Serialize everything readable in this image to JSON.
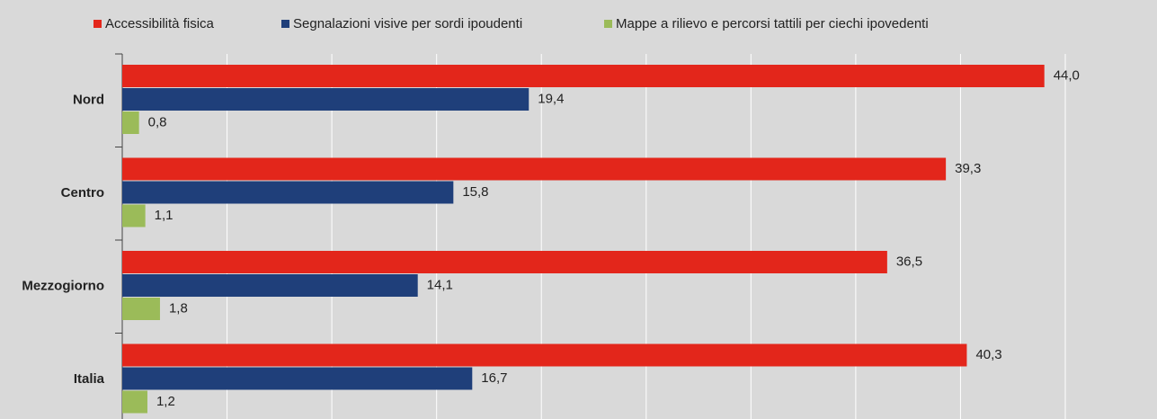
{
  "chart_data": {
    "type": "bar",
    "orientation": "horizontal",
    "categories": [
      "Nord",
      "Centro",
      "Mezzogiorno",
      "Italia"
    ],
    "series": [
      {
        "name": "Accessibilità fisica",
        "color": "#e3261b",
        "values": [
          44.0,
          39.3,
          36.5,
          40.3
        ],
        "value_labels": [
          "44,0",
          "39,3",
          "36,5",
          "40,3"
        ]
      },
      {
        "name": "Segnalazioni visive per sordi ipoudenti",
        "color": "#1f3f7a",
        "values": [
          19.4,
          15.8,
          14.1,
          16.7
        ],
        "value_labels": [
          "19,4",
          "15,8",
          "14,1",
          "16,7"
        ]
      },
      {
        "name": "Mappe a rilievo e percorsi tattili per ciechi ipovedenti",
        "color": "#9bbb59",
        "values": [
          0.8,
          1.1,
          1.8,
          1.2
        ],
        "value_labels": [
          "0,8",
          "1,1",
          "1,8",
          "1,2"
        ]
      }
    ],
    "xlim": [
      0,
      45
    ],
    "xticks": [
      0,
      5,
      10,
      15,
      20,
      25,
      30,
      35,
      40,
      45
    ],
    "grid": true,
    "legend": "top"
  }
}
